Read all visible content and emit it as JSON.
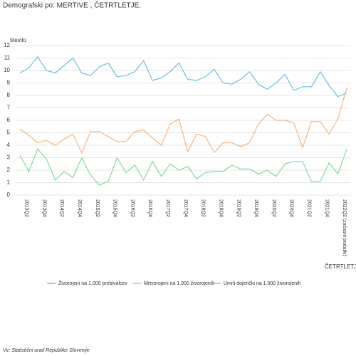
{
  "chart_data": {
    "type": "line",
    "title": "Demografski po: MERTIVE ,  ČETRTLETJE.",
    "y_label": "število",
    "x_label": "ČETRTLETJE",
    "source": "Vir: Statistični urad Republike Slovenije",
    "categories": [
      null,
      "2013Q2",
      null,
      "2013Q4",
      null,
      "2014Q2",
      null,
      "2014Q4",
      null,
      "2015Q2",
      null,
      "2015Q4",
      null,
      "2016Q2",
      null,
      "2016Q4",
      null,
      "2017Q2",
      null,
      "2017Q4",
      null,
      "2018Q2",
      null,
      "2018Q4",
      null,
      "2019Q2",
      null,
      "2019Q4",
      null,
      "2020Q2",
      null,
      "2020Q4",
      null,
      "2021Q2",
      null,
      "2021Q4",
      null,
      "2022Q2 (začasni podatki)"
    ],
    "series": [
      {
        "name": "Živorojeni na 1.000 prebivalcev",
        "color": "#6cbfd8",
        "values": [
          9.8,
          10.2,
          11.1,
          10.0,
          9.8,
          10.4,
          11.0,
          9.8,
          9.6,
          10.3,
          10.6,
          9.5,
          9.6,
          9.9,
          10.8,
          9.2,
          9.4,
          9.9,
          10.6,
          9.3,
          9.2,
          9.5,
          10.1,
          9.0,
          8.9,
          9.3,
          9.9,
          8.9,
          8.5,
          9.0,
          9.7,
          8.4,
          8.7,
          8.7,
          9.9,
          8.8,
          7.9,
          8.2
        ]
      },
      {
        "name": "Mrtvorojeni na 1.000 živorojenih",
        "color": "#f4b67e",
        "values": [
          5.3,
          4.8,
          4.2,
          4.4,
          4.0,
          4.5,
          4.9,
          3.4,
          5.1,
          5.1,
          4.7,
          4.3,
          4.3,
          5.1,
          5.2,
          4.6,
          4.0,
          5.7,
          6.1,
          3.5,
          4.9,
          4.7,
          3.4,
          4.2,
          4.2,
          3.9,
          4.2,
          5.7,
          6.5,
          6.0,
          6.0,
          5.8,
          3.8,
          5.9,
          5.9,
          4.9,
          6.1,
          8.6
        ]
      },
      {
        "name": "Umrli dojenčki na 1.000 živorojenih",
        "color": "#80d99b",
        "values": [
          3.2,
          1.9,
          3.7,
          2.9,
          1.2,
          1.9,
          1.4,
          3.0,
          1.6,
          0.8,
          1.1,
          3.0,
          1.8,
          2.4,
          1.2,
          2.7,
          1.5,
          2.5,
          2.0,
          2.3,
          1.3,
          1.8,
          1.9,
          1.9,
          2.4,
          2.1,
          2.1,
          1.7,
          2.0,
          1.5,
          2.5,
          2.7,
          2.7,
          1.1,
          1.1,
          2.6,
          1.7,
          3.7
        ]
      }
    ],
    "ylim": [
      0,
      12
    ],
    "yticks": [
      0,
      1,
      2,
      3,
      4,
      5,
      6,
      7,
      8,
      9,
      10,
      11,
      12
    ],
    "grid": true
  }
}
